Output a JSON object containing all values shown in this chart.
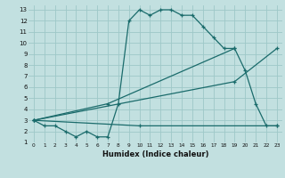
{
  "xlabel": "Humidex (Indice chaleur)",
  "bg_color": "#c2e0e0",
  "grid_color": "#9ec8c8",
  "line_color": "#1a6b6b",
  "xlim": [
    -0.5,
    23.5
  ],
  "ylim": [
    1,
    13.4
  ],
  "xticks": [
    0,
    1,
    2,
    3,
    4,
    5,
    6,
    7,
    8,
    9,
    10,
    11,
    12,
    13,
    14,
    15,
    16,
    17,
    18,
    19,
    20,
    21,
    22,
    23
  ],
  "yticks": [
    1,
    2,
    3,
    4,
    5,
    6,
    7,
    8,
    9,
    10,
    11,
    12,
    13
  ],
  "line1_x": [
    0,
    1,
    2,
    3,
    4,
    5,
    6,
    7,
    8,
    9,
    10,
    11,
    12,
    13,
    14,
    15,
    16,
    17,
    18,
    19
  ],
  "line1_y": [
    3,
    2.5,
    2.5,
    2,
    1.5,
    2,
    1.5,
    1.5,
    4.5,
    12,
    13,
    12.5,
    13,
    13,
    12.5,
    12.5,
    11.5,
    10.5,
    9.5,
    9.5
  ],
  "line2_x": [
    0,
    7,
    19,
    20,
    21,
    22,
    23
  ],
  "line2_y": [
    3,
    4.5,
    9.5,
    7.5,
    4.5,
    2.5,
    2.5
  ],
  "line3_x": [
    0,
    19,
    23
  ],
  "line3_y": [
    3,
    6.5,
    9.5
  ],
  "line4_x": [
    0,
    10,
    23
  ],
  "line4_y": [
    3,
    2.5,
    2.5
  ]
}
